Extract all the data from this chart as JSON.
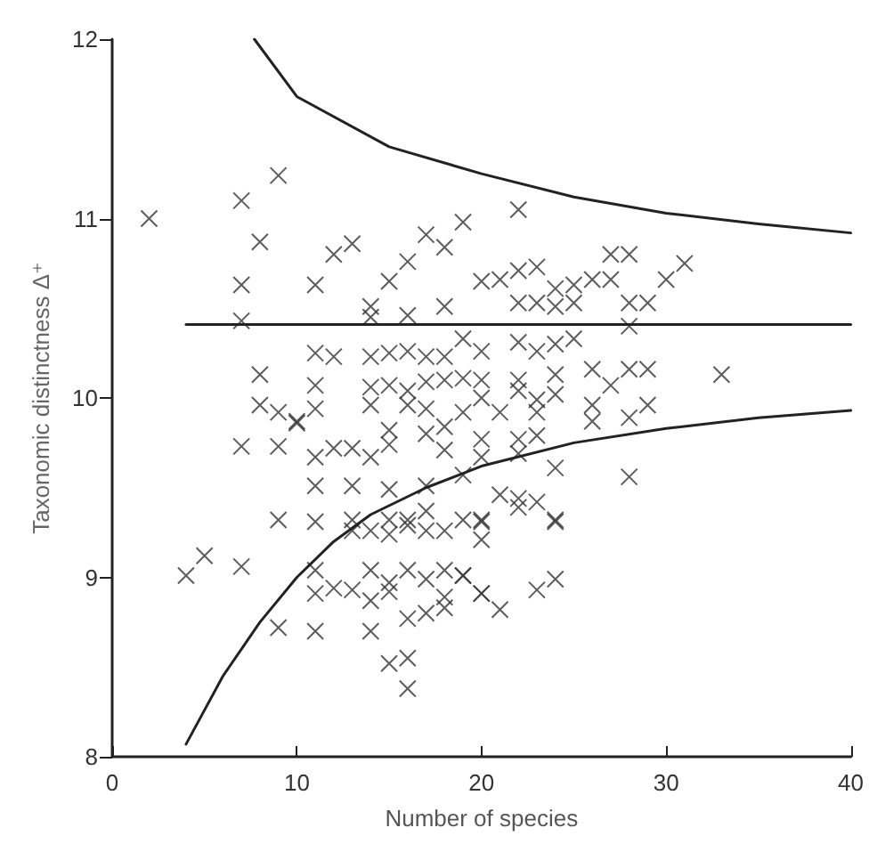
{
  "chart_data": {
    "type": "scatter",
    "xlabel": "Number of species",
    "ylabel": "Taxonomic distinctness Δ⁺",
    "xlim": [
      0,
      40
    ],
    "xticks": [
      0,
      10,
      20,
      30,
      40
    ],
    "ylim": [
      8,
      12
    ],
    "yticks": [
      8,
      9,
      10,
      11,
      12
    ],
    "grid": false,
    "marker": "cross",
    "series": [
      {
        "color": "#333333",
        "x": [
          2,
          7,
          9,
          8,
          7,
          7,
          8,
          8,
          7,
          9,
          9,
          4,
          5,
          7,
          9,
          11,
          12,
          13,
          11,
          12,
          11,
          9,
          10,
          11,
          12,
          13,
          11,
          13,
          11,
          11,
          11,
          12,
          13,
          11,
          11,
          15,
          16,
          17,
          18,
          19,
          14,
          14,
          16,
          18,
          14,
          15,
          16,
          17,
          18,
          14,
          15,
          16,
          17,
          18,
          14,
          16,
          17,
          10,
          15,
          17,
          18,
          14,
          15,
          18,
          15,
          17,
          19,
          13,
          15,
          16,
          17,
          13,
          14,
          15,
          16,
          17,
          18,
          19,
          20,
          14,
          15,
          16,
          17,
          18,
          19,
          14,
          15,
          18,
          20,
          14,
          16,
          17,
          18,
          15,
          16,
          16,
          22,
          20,
          21,
          22,
          23,
          24,
          25,
          26,
          27,
          28,
          27,
          30,
          31,
          22,
          23,
          24,
          25,
          28,
          29,
          28,
          19,
          20,
          22,
          23,
          24,
          25,
          26,
          28,
          29,
          33,
          19,
          20,
          22,
          24,
          20,
          22,
          23,
          24,
          27,
          19,
          21,
          23,
          26,
          26,
          28,
          29,
          20,
          22,
          23,
          20,
          22,
          24,
          28,
          21,
          22,
          23,
          20,
          24,
          20,
          22,
          24,
          19,
          20,
          21,
          23,
          24
        ],
        "values": [
          11.0,
          11.1,
          11.24,
          10.87,
          10.63,
          10.43,
          10.13,
          9.96,
          9.73,
          9.73,
          9.32,
          9.01,
          9.12,
          9.06,
          8.72,
          10.63,
          10.8,
          10.86,
          10.25,
          10.23,
          10.07,
          9.92,
          9.86,
          9.94,
          9.72,
          9.72,
          9.67,
          9.51,
          9.51,
          9.31,
          9.04,
          8.94,
          8.93,
          8.91,
          8.7,
          10.65,
          10.76,
          10.91,
          10.84,
          10.98,
          10.51,
          10.45,
          10.46,
          10.51,
          10.23,
          10.25,
          10.26,
          10.23,
          10.23,
          10.06,
          10.07,
          10.04,
          10.09,
          10.1,
          9.96,
          9.96,
          9.94,
          9.87,
          9.82,
          9.8,
          9.84,
          9.67,
          9.74,
          9.71,
          9.49,
          9.51,
          9.57,
          9.32,
          9.32,
          9.32,
          9.37,
          9.26,
          9.26,
          9.24,
          9.29,
          9.26,
          9.26,
          9.32,
          9.31,
          9.04,
          8.97,
          9.04,
          8.99,
          9.04,
          9.01,
          8.87,
          8.92,
          8.89,
          8.91,
          8.7,
          8.77,
          8.8,
          8.83,
          8.52,
          8.55,
          8.38,
          11.05,
          10.65,
          10.66,
          10.71,
          10.73,
          10.61,
          10.63,
          10.66,
          10.8,
          10.8,
          10.66,
          10.66,
          10.75,
          10.53,
          10.53,
          10.51,
          10.53,
          10.53,
          10.53,
          10.4,
          10.33,
          10.26,
          10.31,
          10.26,
          10.3,
          10.33,
          10.16,
          10.16,
          10.16,
          10.13,
          10.11,
          10.1,
          10.1,
          10.13,
          10.0,
          10.04,
          9.99,
          10.02,
          10.07,
          9.92,
          9.92,
          9.92,
          9.96,
          9.87,
          9.89,
          9.96,
          9.77,
          9.77,
          9.79,
          9.67,
          9.69,
          9.61,
          9.56,
          9.46,
          9.44,
          9.42,
          9.32,
          9.32,
          9.21,
          9.39,
          9.31,
          9.01,
          8.91,
          8.82,
          8.93,
          8.99
        ]
      },
      {
        "type": "line",
        "marker": "none",
        "color": "#222222",
        "x": [
          7.7,
          10,
          15,
          20,
          25,
          30,
          35,
          40
        ],
        "values": [
          12.0,
          11.68,
          11.4,
          11.25,
          11.12,
          11.03,
          10.97,
          10.92
        ]
      },
      {
        "type": "line",
        "marker": "none",
        "color": "#222222",
        "x": [
          4,
          40
        ],
        "values": [
          10.41,
          10.41
        ]
      },
      {
        "type": "line",
        "marker": "none",
        "color": "#222222",
        "x": [
          4,
          6,
          8,
          10,
          12,
          14,
          17,
          20,
          25,
          30,
          35,
          40
        ],
        "values": [
          8.07,
          8.45,
          8.75,
          9.0,
          9.2,
          9.35,
          9.5,
          9.62,
          9.75,
          9.83,
          9.89,
          9.93
        ]
      }
    ]
  }
}
